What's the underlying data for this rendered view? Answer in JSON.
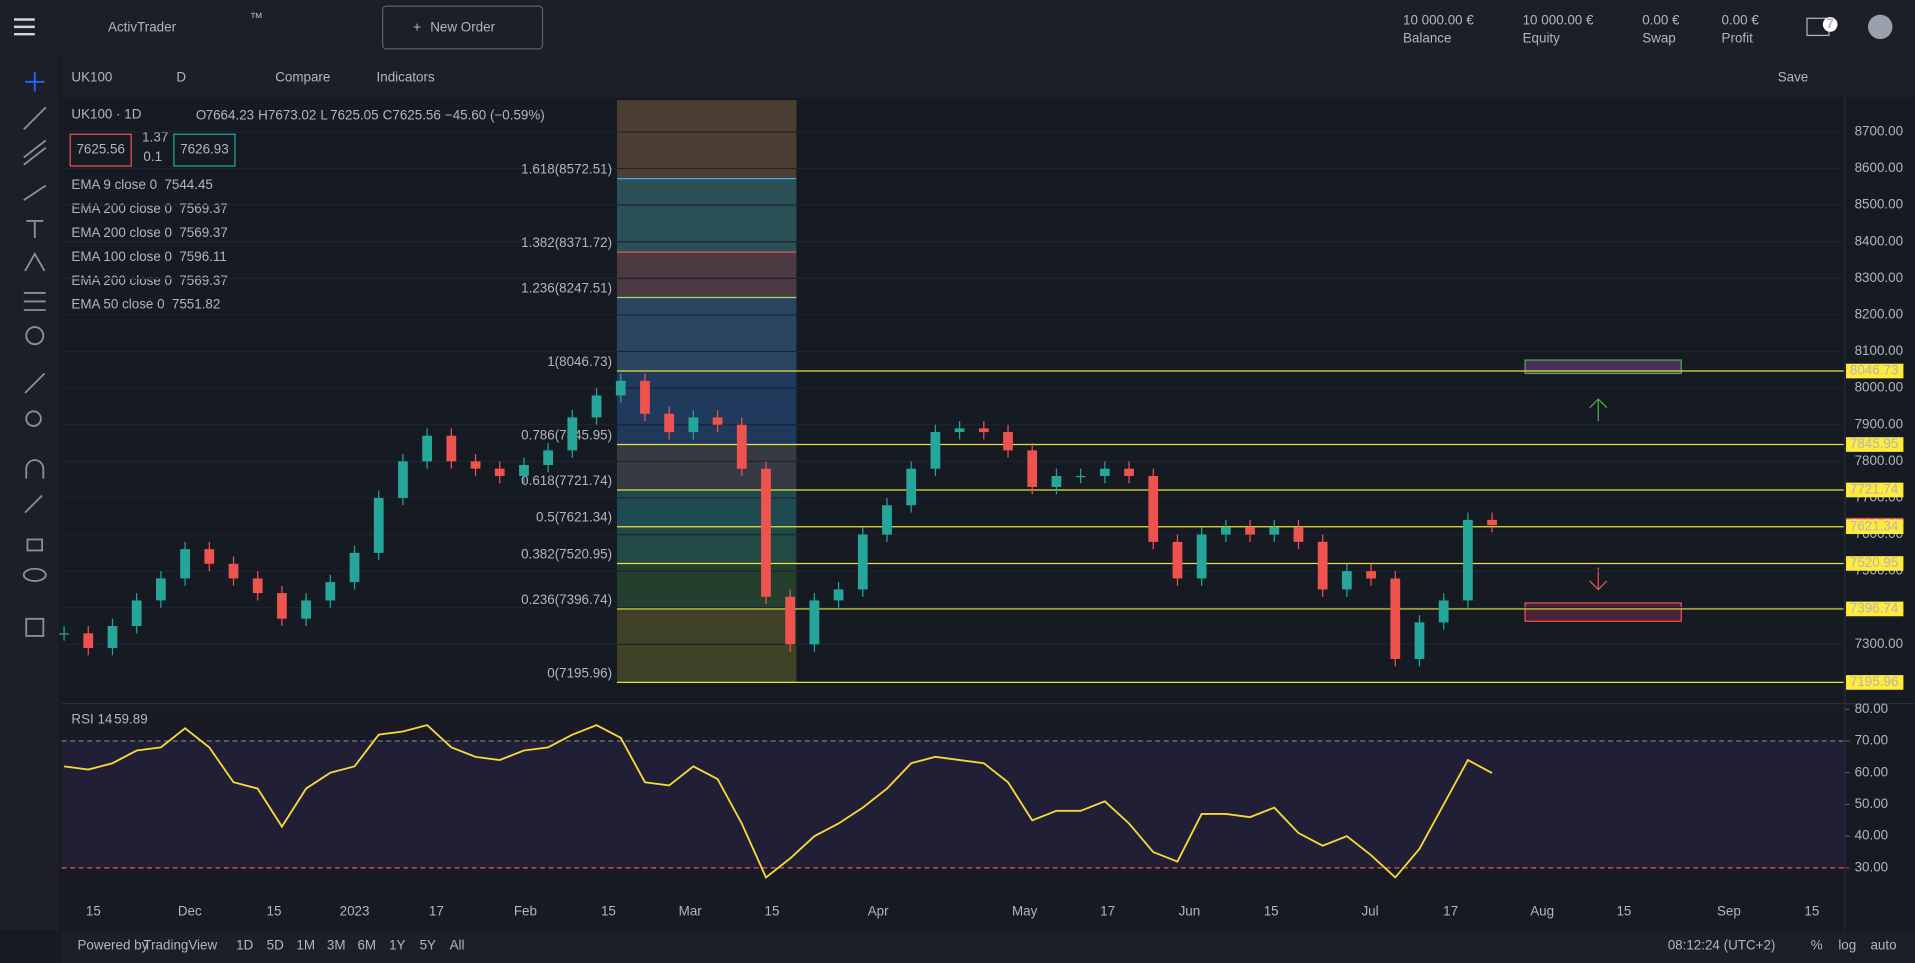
{
  "topbar": {
    "logo": "ActivTrader",
    "tm": "™",
    "new_order": "New Order",
    "stats": [
      {
        "value": "10 000.00 €",
        "label": "Balance"
      },
      {
        "value": "10 000.00 €",
        "label": "Equity"
      },
      {
        "value": "0.00 €",
        "label": "Swap"
      },
      {
        "value": "0.00 €",
        "label": "Profit"
      }
    ],
    "mail_count": "7"
  },
  "toolbar": {
    "symbol": "UK100",
    "interval": "D",
    "compare": "Compare",
    "indicators": "Indicators",
    "save": "Save"
  },
  "legend": {
    "title": "UK100 · 1D",
    "ohlc": [
      {
        "key": "O",
        "value": "7664.23"
      },
      {
        "key": "H",
        "value": "7673.02"
      },
      {
        "key": "L",
        "value": "7625.05"
      },
      {
        "key": "C",
        "value": "7625.56"
      }
    ],
    "change": "−45.60 (−0.59%)",
    "sell": "7625.56",
    "spread_top": "1.37",
    "spread_bottom": "0.1",
    "buy": "7626.93",
    "indicators": [
      {
        "name": "EMA 9 close 0",
        "value": "7544.45",
        "color": "#4caf50"
      },
      {
        "name": "EMA 200 close 0",
        "value": "7569.37",
        "color": "#f44336"
      },
      {
        "name": "EMA 200 close 0",
        "value": "7569.37",
        "color": "#f44336"
      },
      {
        "name": "EMA 100 close 0",
        "value": "7596.11",
        "color": "#2196f3"
      },
      {
        "name": "EMA 200 close 0",
        "value": "7569.37",
        "color": "#f44336"
      },
      {
        "name": "EMA 50 close 0",
        "value": "7551.82",
        "color": "#9c27b0"
      }
    ]
  },
  "chart_data": [
    {
      "type": "candlestick",
      "close": [
        7330,
        7290,
        7350,
        7420,
        7480,
        7560,
        7520,
        7480,
        7440,
        7370,
        7420,
        7470,
        7550,
        7700,
        7800,
        7870,
        7800,
        7780,
        7760,
        7790,
        7830,
        7920,
        7980,
        8020,
        7930,
        7880,
        7920,
        7900,
        7780,
        7430,
        7300,
        7420,
        7450,
        7600,
        7680,
        7780,
        7880,
        7890,
        7880,
        7830,
        7730,
        7760,
        7760,
        7780,
        7760,
        7580,
        7480,
        7600,
        7620,
        7600,
        7620,
        7580,
        7450,
        7500,
        7480,
        7260,
        7360,
        7420,
        7640,
        7625.56
      ],
      "color_up": "#26a69a",
      "color_down": "#ef5350",
      "ylim": [
        7143,
        8787
      ],
      "yticks": [
        {
          "value": 7300,
          "label": "7300.00"
        },
        {
          "value": 7400,
          "label": "7400.00"
        },
        {
          "value": 7500,
          "label": "7500.00"
        },
        {
          "value": 7600,
          "label": "7600.00"
        },
        {
          "value": 7700,
          "label": "7700.00"
        },
        {
          "value": 7800,
          "label": "7800.00"
        },
        {
          "value": 7900,
          "label": "7900.00"
        },
        {
          "value": 8000,
          "label": "8000.00"
        },
        {
          "value": 8100,
          "label": "8100.00"
        },
        {
          "value": 8200,
          "label": "8200.00"
        },
        {
          "value": 8300,
          "label": "8300.00"
        },
        {
          "value": 8400,
          "label": "8400.00"
        },
        {
          "value": 8500,
          "label": "8500.00"
        },
        {
          "value": 8600,
          "label": "8600.00"
        },
        {
          "value": 8700,
          "label": "8700.00"
        }
      ],
      "levels": [
        {
          "value": 8572.51,
          "label": "1.618(8572.51)",
          "color": "#42a5f5"
        },
        {
          "value": 8371.72,
          "label": "1.382(8371.72)",
          "color": "#ef5350"
        },
        {
          "value": 8247.51,
          "label": "1.236(8247.51)",
          "color": "#a5d66b"
        },
        {
          "value": 8046.73,
          "label": "1(8046.73)",
          "color": "#9e9e9e"
        },
        {
          "value": 7845.95,
          "label": "0.786(7845.95)",
          "color": "#42a5f5"
        },
        {
          "value": 7721.74,
          "label": "0.618(7721.74)",
          "color": "#a5d66b"
        },
        {
          "value": 7621.34,
          "label": "0.5(7621.34)",
          "color": "#a5d66b"
        },
        {
          "value": 7520.95,
          "label": "0.382(7520.95)",
          "color": "#c8e6c9"
        },
        {
          "value": 7396.74,
          "label": "0.236(7396.74)",
          "color": "#ef5350"
        },
        {
          "value": 7195.96,
          "label": "0(7195.96)",
          "color": "#9e9e9e"
        }
      ],
      "price_labels": [
        8046.73,
        7845.95,
        7721.74,
        7625.56,
        7621.34,
        7520.95,
        7396.74,
        7195.96
      ],
      "price_label_colors": [
        "#ffeb3b",
        "#ffeb3b",
        "#ffeb3b",
        "#ef5350",
        "#ffeb3b",
        "#ffeb3b",
        "#ffeb3b",
        "#ffeb3b"
      ]
    },
    {
      "type": "line",
      "title": "RSI 14",
      "last": "59.89",
      "color": "#f5d937",
      "ylim": [
        20.8,
        81.2
      ],
      "values": [
        62,
        61,
        63,
        67,
        68,
        74,
        68,
        57,
        55,
        43,
        55,
        60,
        62,
        72,
        73,
        75,
        68,
        65,
        64,
        67,
        68,
        72,
        75,
        71,
        57,
        56,
        62,
        58,
        44,
        27,
        33,
        40,
        44,
        49,
        55,
        63,
        65,
        64,
        63,
        57,
        45,
        48,
        48,
        51,
        44,
        35,
        32,
        47,
        47,
        46,
        49,
        41,
        37,
        40,
        34,
        27,
        36,
        50,
        64,
        59.89
      ],
      "yticks": [
        {
          "value": 30,
          "label": "30.00"
        },
        {
          "value": 40,
          "label": "40.00"
        },
        {
          "value": 50,
          "label": "50.00"
        },
        {
          "value": 60,
          "label": "60.00"
        },
        {
          "value": 70,
          "label": "70.00"
        },
        {
          "value": 80,
          "label": "80.00"
        }
      ],
      "band": [
        30,
        70
      ]
    }
  ],
  "time_axis": [
    "15",
    "Dec",
    "15",
    "2023",
    "17",
    "Feb",
    "15",
    "Mar",
    "15",
    "Apr",
    "May",
    "17",
    "Jun",
    "15",
    "Jul",
    "17",
    "Aug",
    "15",
    "Sep",
    "15"
  ],
  "bottombar": {
    "powered": "Powered by",
    "brand": "TradingView",
    "ranges": [
      "1D",
      "5D",
      "1M",
      "3M",
      "6M",
      "1Y",
      "5Y",
      "All"
    ],
    "clock": "08:12:24 (UTC+2)",
    "pct": "%",
    "log": "log",
    "auto": "auto"
  }
}
